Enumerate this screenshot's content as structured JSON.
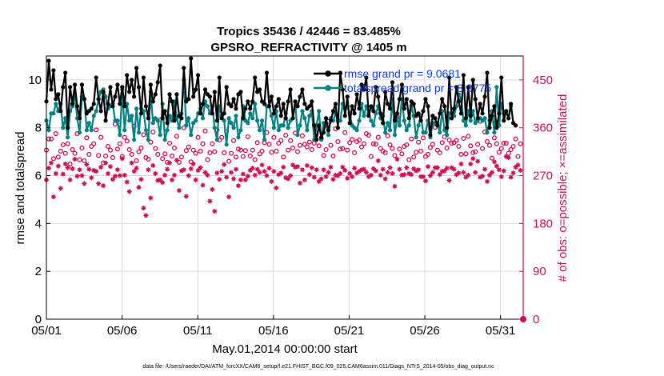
{
  "chart_data": {
    "type": "line",
    "title_line1": "Tropics 35436 / 42446 = 83.485%",
    "title_line2": "GPSRO_REFRACTIVITY @ 1405 m",
    "xlabel": "May.01,2014 00:00:00 start",
    "ylabel_left": "rmse and totalspread",
    "ylabel_right": "# of obs: o=possible; ×=assimilated",
    "footer": "data file: /Users/raeder/DAI/ATM_forcXX/CAM6_setup/f.e21.FHIST_BGC.f09_025.CAM6assim.011/Diags_NTrS_2014-05/obs_diag_output.nc",
    "xlim": [
      0,
      31.5
    ],
    "ylim_left": [
      0,
      11
    ],
    "ylim_right": [
      0,
      495
    ],
    "x_ticks": [
      0,
      5,
      10,
      15,
      20,
      25,
      30
    ],
    "x_tick_labels": [
      "05/01",
      "05/06",
      "05/11",
      "05/16",
      "05/21",
      "05/26",
      "05/31"
    ],
    "y_left_ticks": [
      0,
      2,
      4,
      6,
      8,
      10
    ],
    "y_left_tick_labels": [
      "0",
      "2",
      "4",
      "6",
      "8",
      "10"
    ],
    "y_right_ticks": [
      0,
      90,
      180,
      270,
      360,
      450
    ],
    "y_right_tick_labels": [
      "0",
      "90",
      "180",
      "270",
      "360",
      "450"
    ],
    "colors": {
      "rmse": "#000000",
      "spread": "#008080",
      "obs": "#cc0e55",
      "legend_text": "#0b3bd6",
      "grid": "#d9d9d9"
    },
    "series": [
      {
        "name": "rmse",
        "legend": "rmse grand pr = 9.0681",
        "values": [
          9.1,
          10.8,
          9.6,
          10.4,
          9.2,
          9.4,
          8.7,
          9.7,
          10.3,
          8.0,
          9.7,
          9.0,
          9.8,
          8.9,
          8.4,
          9.8,
          9.2,
          8.6,
          8.7,
          8.8,
          9.0,
          10.1,
          9.2,
          8.7,
          9.5,
          8.3,
          9.0,
          9.7,
          8.9,
          9.3,
          9.8,
          9.0,
          9.7,
          8.9,
          10.2,
          9.5,
          10.0,
          9.3,
          10.5,
          9.7,
          8.6,
          10.1,
          8.9,
          8.4,
          9.8,
          9.1,
          9.4,
          9.9,
          10.6,
          8.4,
          8.7,
          8.2,
          9.4,
          9.1,
          8.3,
          9.4,
          8.5,
          8.4,
          10.5,
          9.1,
          9.2,
          10.9,
          9.3,
          9.6,
          10.2,
          8.6,
          9.0,
          9.6,
          9.4,
          9.3,
          8.6,
          9.5,
          8.3,
          10.1,
          8.4,
          8.6,
          9.7,
          9.0,
          8.9,
          9.2,
          8.8,
          9.4,
          9.5,
          8.4,
          8.8,
          9.1,
          8.8,
          9.1,
          10.1,
          9.5,
          9.6,
          9.1,
          9.0,
          10.3,
          8.9,
          9.3,
          8.6,
          8.9,
          9.2,
          8.5,
          9.0,
          8.4,
          9.1,
          9.6,
          8.4,
          9.1,
          8.9,
          9.3,
          9.6,
          9.0,
          8.8,
          8.9,
          9.1,
          8.1,
          7.5,
          8.1,
          7.6,
          7.8,
          8.4,
          7.9,
          8.3,
          8.7,
          9.0,
          8.0,
          10.3,
          9.6,
          8.5,
          9.3,
          8.2,
          8.9,
          8.6,
          9.4,
          8.8,
          9.8,
          9.6,
          10.1,
          8.5,
          8.9,
          8.7,
          9.7,
          9.3,
          8.6,
          8.2,
          9.5,
          9.0,
          8.8,
          9.9,
          8.3,
          8.6,
          9.2,
          9.8,
          8.8,
          9.2,
          8.4,
          9.1,
          9.0,
          8.5,
          8.6,
          8.3,
          8.7,
          9.2,
          8.9,
          7.7,
          8.5,
          8.4,
          8.1,
          8.6,
          9.2,
          8.9,
          8.0,
          10.1,
          8.4,
          8.8,
          9.7,
          9.1,
          8.6,
          10.2,
          8.4,
          9.7,
          8.5,
          10.0,
          9.2,
          8.4,
          9.0,
          8.6,
          9.3,
          10.3,
          8.0,
          8.5,
          8.9,
          8.0,
          8.6,
          10.1,
          8.3,
          8.7,
          8.4,
          9.0,
          8.2,
          8.1
        ]
      },
      {
        "name": "totalspread",
        "legend": "totalspread grand pr = 8.3775",
        "values": [
          8.3,
          7.9,
          8.6,
          8.6,
          9.0,
          8.7,
          9.0,
          8.0,
          8.4,
          7.6,
          8.7,
          8.9,
          9.4,
          8.4,
          7.8,
          9.3,
          9.2,
          7.9,
          8.2,
          7.9,
          8.5,
          8.7,
          9.2,
          9.5,
          9.6,
          9.3,
          8.8,
          8.9,
          9.0,
          8.3,
          8.3,
          7.7,
          9.6,
          7.9,
          9.0,
          8.3,
          8.5,
          7.5,
          8.8,
          7.8,
          8.8,
          8.7,
          7.9,
          7.5,
          9.5,
          8.2,
          8.4,
          8.3,
          7.7,
          9.0,
          7.5,
          7.9,
          8.5,
          8.3,
          9.1,
          8.4,
          8.0,
          8.6,
          10.0,
          8.1,
          8.4,
          7.7,
          8.2,
          8.3,
          8.6,
          8.8,
          8.4,
          9.1,
          8.9,
          8.6,
          8.9,
          8.0,
          7.5,
          8.9,
          8.5,
          8.3,
          7.3,
          8.4,
          8.2,
          8.0,
          8.5,
          7.6,
          7.9,
          8.9,
          8.3,
          8.2,
          8.6,
          8.4,
          9.0,
          8.3,
          7.9,
          8.3,
          7.5,
          8.9,
          8.9,
          8.5,
          8.0,
          8.7,
          7.9,
          8.1,
          8.1,
          8.6,
          8.0,
          8.3,
          8.4,
          9.1,
          7.7,
          8.1,
          8.7,
          8.4,
          7.9,
          8.5,
          8.7,
          7.5,
          8.1,
          8.7,
          7.5,
          8.2,
          8.1,
          7.7,
          8.4,
          8.3,
          8.6,
          8.3,
          8.3,
          9.0,
          8.8,
          8.9,
          8.6,
          8.1,
          8.0,
          7.9,
          8.3,
          9.0,
          8.5,
          8.9,
          8.6,
          8.3,
          8.1,
          8.6,
          8.9,
          8.4,
          8.5,
          7.8,
          8.2,
          7.9,
          9.2,
          7.7,
          8.4,
          8.1,
          9.2,
          8.3,
          7.9,
          8.1,
          8.9,
          8.5,
          7.6,
          8.1,
          8.5,
          7.8,
          7.8,
          8.3,
          7.6,
          8.2,
          8.2,
          8.2,
          7.8,
          8.7,
          7.9,
          7.7,
          8.6,
          8.6,
          8.5,
          8.9,
          9.4,
          9.2,
          8.3,
          8.1,
          8.7,
          8.3,
          8.7,
          8.2,
          8.3,
          8.4,
          8.3,
          8.4,
          7.8,
          8.3,
          8.7,
          7.8,
          9.7,
          8.1,
          9.0,
          8.6,
          8.7,
          8.4,
          8.9
        ]
      },
      {
        "name": "possible",
        "marker": "o",
        "values": [
          318,
          339,
          339,
          302,
          349,
          305,
          316,
          328,
          312,
          330,
          292,
          319,
          312,
          349,
          300,
          322,
          298,
          341,
          310,
          325,
          330,
          356,
          308,
          342,
          294,
          307,
          325,
          318,
          304,
          367,
          320,
          330,
          306,
          342,
          335,
          319,
          310,
          363,
          298,
          315,
          322,
          347,
          304,
          301,
          333,
          352,
          321,
          310,
          375,
          302,
          311,
          295,
          331,
          307,
          322,
          344,
          295,
          305,
          360,
          317,
          324,
          296,
          318,
          312,
          342,
          316,
          330,
          354,
          300,
          313,
          330,
          315,
          356,
          337,
          342,
          313,
          353,
          297,
          312,
          336,
          305,
          320,
          318,
          306,
          317,
          343,
          307,
          318,
          300,
          332,
          311,
          316,
          332,
          351,
          329,
          314,
          342,
          316,
          331,
          336,
          305,
          346,
          318,
          336,
          322,
          350,
          315,
          327,
          345,
          329,
          324,
          333,
          319,
          331,
          357,
          326,
          340,
          308,
          319,
          372,
          327,
          307,
          358,
          334,
          320,
          321,
          351,
          318,
          332,
          338,
          313,
          334,
          337,
          324,
          330,
          349,
          346,
          306,
          330,
          329,
          342,
          321,
          316,
          313,
          345,
          328,
          321,
          308,
          380,
          320,
          311,
          325,
          328,
          300,
          339,
          305,
          314,
          333,
          316,
          341,
          306,
          310,
          323,
          329,
          361,
          318,
          313,
          332,
          343,
          322,
          337,
          331,
          332,
          336,
          325,
          310,
          340,
          311,
          344,
          326,
          313,
          315,
          329,
          372,
          321,
          352,
          334,
          327,
          303,
          341,
          330,
          314,
          321,
          331,
          331,
          312,
          319,
          325,
          339,
          306,
          330
        ]
      },
      {
        "name": "assimilated",
        "marker": "*",
        "values": [
          262,
          284,
          294,
          230,
          274,
          288,
          246,
          273,
          292,
          285,
          262,
          283,
          301,
          269,
          281,
          270,
          255,
          291,
          282,
          266,
          280,
          278,
          255,
          286,
          251,
          294,
          274,
          287,
          263,
          269,
          281,
          270,
          302,
          271,
          258,
          240,
          294,
          278,
          284,
          248,
          263,
          209,
          195,
          281,
          228,
          289,
          274,
          261,
          262,
          257,
          271,
          282,
          294,
          262,
          271,
          299,
          242,
          279,
          281,
          231,
          270,
          283,
          292,
          262,
          280,
          285,
          252,
          276,
          271,
          222,
          244,
          203,
          275,
          263,
          278,
          291,
          267,
          230,
          276,
          264,
          282,
          251,
          262,
          273,
          262,
          269,
          280,
          284,
          271,
          282,
          276,
          290,
          278,
          270,
          284,
          259,
          278,
          247,
          272,
          275,
          286,
          266,
          264,
          270,
          290,
          286,
          287,
          256,
          281,
          262,
          289,
          272,
          285,
          267,
          281,
          259,
          264,
          281,
          268,
          276,
          286,
          263,
          271,
          270,
          274,
          286,
          280,
          265,
          274,
          268,
          284,
          275,
          278,
          281,
          282,
          276,
          268,
          271,
          283,
          279,
          298,
          271,
          282,
          264,
          276,
          285,
          274,
          250,
          301,
          282,
          271,
          272,
          285,
          274,
          272,
          283,
          279,
          281,
          268,
          268,
          260,
          287,
          270,
          276,
          285,
          285,
          272,
          278,
          279,
          284,
          261,
          285,
          282,
          272,
          275,
          292,
          276,
          267,
          271,
          292,
          302,
          276,
          297,
          267,
          269,
          282,
          259,
          271,
          276,
          296,
          288,
          281,
          268,
          279,
          306,
          304,
          267,
          275,
          286,
          290,
          280
        ]
      }
    ]
  }
}
